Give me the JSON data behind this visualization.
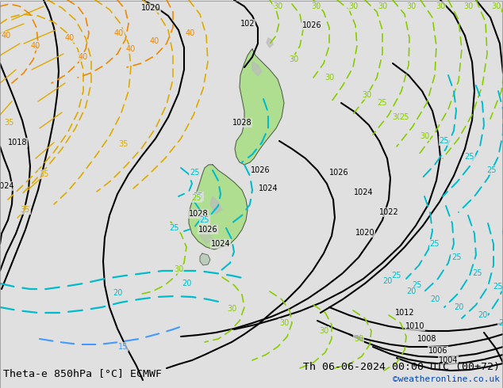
{
  "title_left": "Theta-e 850hPa [°C] ECMWF",
  "title_right": "Th 06-06-2024 00:00 UTC (00+72)",
  "credit": "©weatheronline.co.uk",
  "bg_color": "#e8e8e8",
  "fig_width": 6.34,
  "fig_height": 4.9,
  "dpi": 100,
  "title_fontsize": 9.5,
  "credit_fontsize": 8.0,
  "credit_color": "#0044bb",
  "black": "#000000",
  "green": "#88cc00",
  "cyan": "#00bbcc",
  "blue": "#3399ff",
  "yellow": "#ddaa00",
  "orange": "#ee7700",
  "fill_green": "#aade88",
  "fill_gray": "#bbbbbb"
}
